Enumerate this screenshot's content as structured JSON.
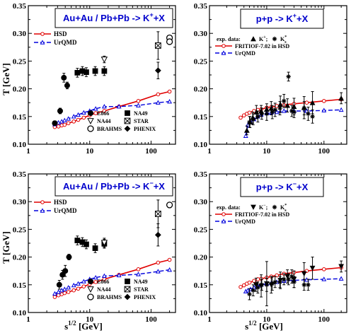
{
  "figure": {
    "y_axis_label": "T [GeV]",
    "x_axis_label": "s1/2 [GeV]",
    "x_ticks": [
      "1",
      "10",
      "100"
    ],
    "y_ticks": [
      "0.10",
      "0.15",
      "0.20",
      "0.25",
      "0.30",
      "0.35"
    ]
  },
  "colors": {
    "hsd": "#e00000",
    "urqmd": "#0000dd",
    "title_text": "#0000cc",
    "data": "#000000"
  },
  "chart_data": [
    {
      "id": "AA_Kplus",
      "type": "scatter",
      "title": "Au+Au / Pb+Pb  -> K++X",
      "xscale": "log",
      "xlim": [
        1,
        250
      ],
      "ylim": [
        0.1,
        0.35
      ],
      "xlabel": "",
      "ylabel": "T [GeV]",
      "legend": [
        "HSD",
        "UrQMD"
      ],
      "exp_legend": [
        "E866",
        "NA49",
        "NA44",
        "STAR",
        "BRAHMS",
        "PHENIX"
      ],
      "series": [
        {
          "name": "HSD",
          "x": [
            2.7,
            3.1,
            3.5,
            3.9,
            4.5,
            5.5,
            6.5,
            8,
            10,
            12.5,
            17.3,
            30,
            62,
            130,
            200
          ],
          "y": [
            0.131,
            0.132,
            0.134,
            0.135,
            0.138,
            0.141,
            0.144,
            0.148,
            0.152,
            0.156,
            0.16,
            0.168,
            0.178,
            0.19,
            0.195
          ]
        },
        {
          "name": "UrQMD",
          "x": [
            2.7,
            3.1,
            3.5,
            3.9,
            4.5,
            5.5,
            6.5,
            8,
            10,
            12.5,
            17.3,
            30,
            62,
            130,
            200
          ],
          "y": [
            0.136,
            0.139,
            0.141,
            0.143,
            0.146,
            0.15,
            0.153,
            0.157,
            0.16,
            0.164,
            0.168,
            0.168,
            0.17,
            0.175,
            0.177
          ]
        },
        {
          "name": "E866",
          "marker": "circle-filled",
          "x": [
            2.7,
            3.3,
            3.8,
            4.3
          ],
          "y": [
            0.138,
            0.16,
            0.22,
            0.206
          ],
          "err": [
            0.004,
            0.005,
            0.008,
            0.006
          ]
        },
        {
          "name": "NA49",
          "marker": "square-filled",
          "x": [
            6.3,
            7.6,
            8.8,
            12.3,
            17.3
          ],
          "y": [
            0.229,
            0.232,
            0.23,
            0.232,
            0.232
          ],
          "err": [
            0.008,
            0.008,
            0.008,
            0.008,
            0.008
          ]
        },
        {
          "name": "NA44",
          "marker": "triangle-down-open",
          "x": [
            17.3
          ],
          "y": [
            0.253
          ],
          "err": [
            0.006
          ]
        },
        {
          "name": "STAR",
          "marker": "square-x",
          "x": [
            130
          ],
          "y": [
            0.278
          ],
          "err": [
            0.025
          ]
        },
        {
          "name": "BRAHMS",
          "marker": "circle-open",
          "x": [
            200,
            200
          ],
          "y": [
            0.292,
            0.285
          ],
          "err": [
            0,
            0
          ]
        },
        {
          "name": "PHENIX",
          "marker": "diamond-filled",
          "x": [
            130
          ],
          "y": [
            0.233
          ],
          "err": [
            0.015
          ]
        }
      ]
    },
    {
      "id": "pp_Kplus",
      "type": "scatter",
      "title": "p+p -> K++X",
      "xscale": "log",
      "xlim": [
        1,
        250
      ],
      "ylim": [
        0.1,
        0.35
      ],
      "xlabel": "",
      "ylabel": "",
      "legend": [
        "exp. data:",
        "K+;",
        "K*s",
        "FRITIOF-7.02 in HSD",
        "UrQMD"
      ],
      "series": [
        {
          "name": "FRITIOF-7.02 in HSD",
          "x": [
            3.5,
            4,
            4.5,
            5,
            6,
            7,
            8,
            10,
            12,
            15,
            20,
            30,
            50,
            100,
            200
          ],
          "y": [
            0.148,
            0.152,
            0.155,
            0.157,
            0.16,
            0.162,
            0.163,
            0.166,
            0.167,
            0.169,
            0.171,
            0.173,
            0.175,
            0.178,
            0.181
          ]
        },
        {
          "name": "UrQMD",
          "x": [
            4.3,
            4.7,
            5.2,
            6,
            7,
            8,
            10,
            12,
            15,
            20,
            30,
            50,
            100,
            200
          ],
          "y": [
            0.115,
            0.135,
            0.14,
            0.145,
            0.15,
            0.153,
            0.156,
            0.157,
            0.158,
            0.16,
            0.16,
            0.16,
            0.161,
            0.162
          ]
        },
        {
          "name": "K+",
          "marker": "triangle-up-filled",
          "x": [
            4.5,
            5.1,
            5.7,
            6.6,
            8,
            10,
            12,
            17.3,
            23,
            30,
            45,
            63,
            200
          ],
          "y": [
            0.125,
            0.14,
            0.148,
            0.158,
            0.16,
            0.163,
            0.165,
            0.172,
            0.17,
            0.168,
            0.166,
            0.175,
            0.183
          ],
          "err": [
            0.008,
            0.01,
            0.01,
            0.012,
            0.01,
            0.01,
            0.012,
            0.015,
            0.012,
            0.015,
            0.02,
            0.02,
            0.01
          ]
        },
        {
          "name": "K*s",
          "marker": "star",
          "x": [
            5,
            5.8,
            7,
            8.2,
            10,
            12.5,
            14,
            17,
            20,
            24,
            27.4,
            30,
            45,
            53,
            63
          ],
          "y": [
            0.14,
            0.145,
            0.15,
            0.155,
            0.155,
            0.158,
            0.162,
            0.165,
            0.178,
            0.222,
            0.16,
            0.158,
            0.165,
            0.155,
            0.15
          ],
          "err": [
            0.01,
            0.01,
            0.01,
            0.01,
            0.012,
            0.012,
            0.012,
            0.012,
            0.012,
            0.008,
            0.01,
            0.01,
            0.012,
            0.012,
            0.012
          ]
        }
      ]
    },
    {
      "id": "AA_Kminus",
      "type": "scatter",
      "title": "Au+Au / Pb+Pb  -> K-+X",
      "xscale": "log",
      "xlim": [
        1,
        250
      ],
      "ylim": [
        0.1,
        0.35
      ],
      "xlabel": "s1/2 [GeV]",
      "ylabel": "T [GeV]",
      "legend": [
        "HSD",
        "UrQMD"
      ],
      "exp_legend": [
        "E866",
        "NA49",
        "NA44",
        "STAR",
        "BRAHMS",
        "PHENIX"
      ],
      "series": [
        {
          "name": "HSD",
          "x": [
            2.7,
            3.1,
            3.5,
            3.9,
            4.5,
            5.5,
            6.5,
            8,
            10,
            12.5,
            17.3,
            30,
            62,
            130,
            200
          ],
          "y": [
            0.128,
            0.131,
            0.133,
            0.135,
            0.137,
            0.14,
            0.143,
            0.147,
            0.151,
            0.155,
            0.16,
            0.168,
            0.178,
            0.19,
            0.195
          ]
        },
        {
          "name": "UrQMD",
          "x": [
            2.7,
            3.1,
            3.5,
            3.9,
            4.5,
            5.5,
            6.5,
            8,
            10,
            12.5,
            17.3,
            30,
            62,
            130,
            200
          ],
          "y": [
            0.134,
            0.137,
            0.14,
            0.142,
            0.145,
            0.149,
            0.152,
            0.156,
            0.16,
            0.163,
            0.166,
            0.167,
            0.169,
            0.174,
            0.177
          ]
        },
        {
          "name": "E866",
          "marker": "circle-filled",
          "x": [
            3.2,
            3.6,
            4.0,
            4.6
          ],
          "y": [
            0.15,
            0.168,
            0.175,
            0.2
          ],
          "err": [
            0.008,
            0.008,
            0.01,
            0.005
          ]
        },
        {
          "name": "NA49",
          "marker": "square-filled",
          "x": [
            6.3,
            7.6,
            8.8,
            12.3,
            17.3
          ],
          "y": [
            0.23,
            0.227,
            0.223,
            0.216,
            0.224
          ],
          "err": [
            0.008,
            0.008,
            0.008,
            0.008,
            0.008
          ]
        },
        {
          "name": "NA44",
          "marker": "triangle-down-open",
          "x": [
            17.3
          ],
          "y": [
            0.226
          ],
          "err": [
            0.008
          ]
        },
        {
          "name": "STAR",
          "marker": "square-x",
          "x": [
            130
          ],
          "y": [
            0.278
          ],
          "err": [
            0.025
          ]
        },
        {
          "name": "BRAHMS",
          "marker": "circle-open",
          "x": [
            200
          ],
          "y": [
            0.294
          ],
          "err": [
            0
          ]
        },
        {
          "name": "PHENIX",
          "marker": "diamond-filled",
          "x": [
            130
          ],
          "y": [
            0.24
          ],
          "err": [
            0.02
          ]
        }
      ]
    },
    {
      "id": "pp_Kminus",
      "type": "scatter",
      "title": "p+p -> K-+X",
      "xscale": "log",
      "xlim": [
        1,
        250
      ],
      "ylim": [
        0.1,
        0.35
      ],
      "xlabel": "s1/2 [GeV]",
      "ylabel": "",
      "legend": [
        "exp. data:",
        "K-;",
        "K*s",
        "FRITIOF-7.02 in HSD",
        "UrQMD"
      ],
      "series": [
        {
          "name": "FRITIOF-7.02 in HSD",
          "x": [
            3.5,
            4,
            4.5,
            5,
            6,
            7,
            8,
            10,
            12,
            15,
            20,
            30,
            50,
            100,
            200
          ],
          "y": [
            0.146,
            0.149,
            0.152,
            0.154,
            0.157,
            0.16,
            0.161,
            0.163,
            0.165,
            0.167,
            0.17,
            0.172,
            0.175,
            0.178,
            0.181
          ]
        },
        {
          "name": "UrQMD",
          "x": [
            4.3,
            4.7,
            5.2,
            6,
            7,
            8,
            10,
            12,
            15,
            20,
            30,
            50,
            100,
            200
          ],
          "y": [
            0.138,
            0.14,
            0.142,
            0.145,
            0.148,
            0.15,
            0.152,
            0.153,
            0.155,
            0.157,
            0.158,
            0.159,
            0.16,
            0.161
          ]
        },
        {
          "name": "K-",
          "marker": "triangle-down-filled",
          "x": [
            6.5,
            8,
            10,
            12,
            17.3,
            23,
            30,
            45,
            63,
            200
          ],
          "y": [
            0.15,
            0.148,
            0.152,
            0.15,
            0.158,
            0.165,
            0.16,
            0.17,
            0.18,
            0.183
          ],
          "err": [
            0.012,
            0.02,
            0.04,
            0.015,
            0.015,
            0.012,
            0.015,
            0.02,
            0.02,
            0.01
          ]
        },
        {
          "name": "K*s",
          "marker": "star",
          "x": [
            5,
            5.8,
            7,
            8.2,
            10,
            12.5,
            14,
            17,
            20,
            24,
            27.4,
            30,
            45,
            53
          ],
          "y": [
            0.133,
            0.14,
            0.145,
            0.15,
            0.15,
            0.152,
            0.155,
            0.155,
            0.16,
            0.16,
            0.165,
            0.155,
            0.15,
            0.15
          ],
          "err": [
            0.01,
            0.01,
            0.01,
            0.01,
            0.012,
            0.012,
            0.01,
            0.01,
            0.01,
            0.01,
            0.012,
            0.01,
            0.01,
            0.01
          ]
        }
      ]
    }
  ]
}
